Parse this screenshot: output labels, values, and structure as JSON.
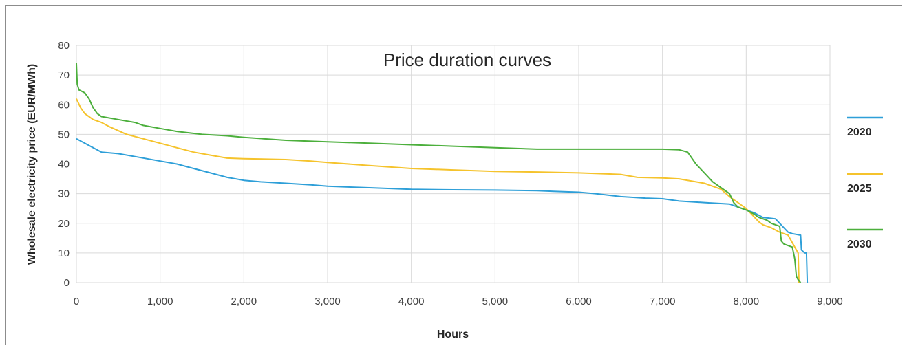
{
  "chart_data": {
    "type": "line",
    "title": "Price duration curves",
    "xlabel": "Hours",
    "ylabel": "Wholesale electricity price (EUR/MWh)",
    "xlim": [
      0,
      9000
    ],
    "ylim": [
      0,
      80
    ],
    "xticks": [
      "0",
      "1,000",
      "2,000",
      "3,000",
      "4,000",
      "5,000",
      "6,000",
      "7,000",
      "8,000",
      "9,000"
    ],
    "yticks": [
      "0",
      "10",
      "20",
      "30",
      "40",
      "50",
      "60",
      "70",
      "80"
    ],
    "grid": true,
    "legend_position": "right",
    "series": [
      {
        "name": "2020",
        "color": "#2e9fd8",
        "x": [
          0,
          100,
          200,
          300,
          500,
          700,
          1000,
          1200,
          1400,
          1600,
          1800,
          2000,
          2200,
          2500,
          2800,
          3000,
          3500,
          4000,
          4500,
          5000,
          5500,
          5700,
          6000,
          6200,
          6500,
          6800,
          7000,
          7200,
          7500,
          7800,
          7950,
          8100,
          8200,
          8350,
          8500,
          8550,
          8650,
          8660,
          8700,
          8720,
          8730
        ],
        "y": [
          48.5,
          47,
          45.5,
          44,
          43.5,
          42.5,
          41,
          40,
          38.5,
          37,
          35.5,
          34.5,
          34,
          33.5,
          33,
          32.5,
          32,
          31.5,
          31.3,
          31.2,
          31,
          30.8,
          30.5,
          30,
          29,
          28.5,
          28.3,
          27.5,
          27,
          26.5,
          25,
          23.5,
          22,
          21.5,
          17,
          16.5,
          16,
          11,
          10,
          10,
          0
        ]
      },
      {
        "name": "2025",
        "color": "#f5c32c",
        "x": [
          0,
          50,
          100,
          200,
          300,
          400,
          600,
          800,
          1000,
          1200,
          1400,
          1600,
          1800,
          2000,
          2500,
          2800,
          3000,
          3500,
          4000,
          4500,
          5000,
          5500,
          5700,
          6000,
          6500,
          6700,
          7000,
          7200,
          7500,
          7700,
          7800,
          7900,
          8000,
          8100,
          8150,
          8200,
          8300,
          8400,
          8500,
          8600,
          8620,
          8630
        ],
        "y": [
          62,
          59,
          57,
          55,
          54,
          52.5,
          50,
          48.5,
          47,
          45.5,
          44,
          43,
          42,
          41.8,
          41.5,
          41,
          40.5,
          39.5,
          38.5,
          38,
          37.5,
          37.3,
          37.2,
          37,
          36.5,
          35.5,
          35.3,
          35,
          33.5,
          31.5,
          29,
          27,
          25,
          22,
          20.5,
          19.5,
          18.5,
          17,
          16,
          11,
          10,
          0
        ]
      },
      {
        "name": "2030",
        "color": "#4caf3c",
        "x": [
          0,
          10,
          30,
          100,
          150,
          200,
          250,
          300,
          500,
          700,
          800,
          1000,
          1200,
          1500,
          1800,
          2000,
          2500,
          3000,
          3500,
          4000,
          4500,
          5000,
          5500,
          6000,
          6500,
          7000,
          7200,
          7300,
          7400,
          7500,
          7600,
          7700,
          7800,
          7850,
          7900,
          8000,
          8100,
          8150,
          8250,
          8300,
          8400,
          8420,
          8450,
          8550,
          8580,
          8600,
          8620,
          8650
        ],
        "y": [
          74,
          67,
          65,
          64,
          62,
          59,
          57,
          56,
          55,
          54,
          53,
          52,
          51,
          50,
          49.5,
          49,
          48,
          47.5,
          47,
          46.5,
          46,
          45.5,
          45,
          45,
          45,
          45,
          44.8,
          44,
          40,
          37,
          34,
          32,
          30,
          27,
          25.5,
          24.5,
          23,
          22,
          21,
          20,
          19,
          14,
          13,
          12,
          8,
          2,
          1,
          0
        ]
      }
    ]
  }
}
